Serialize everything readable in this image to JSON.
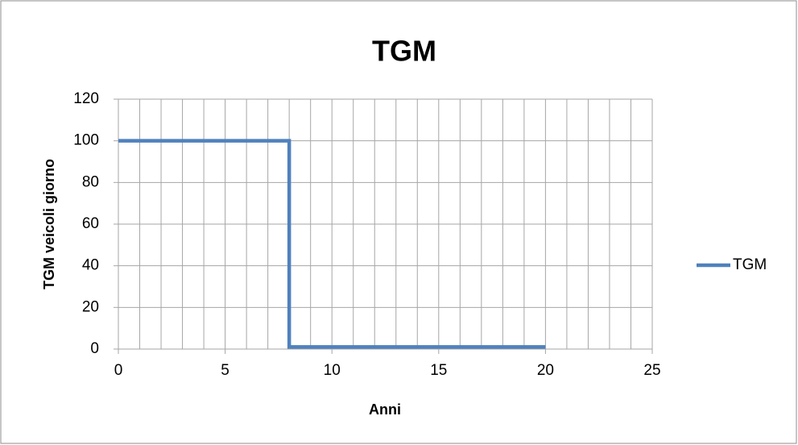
{
  "chart_data": {
    "type": "line",
    "title": "TGM",
    "xlabel": "Anni",
    "ylabel": "TGM veicoli giorno",
    "x": [
      0,
      8,
      8,
      20
    ],
    "series": [
      {
        "name": "TGM",
        "color": "#4f81bd",
        "values": [
          100,
          100,
          1,
          1
        ]
      }
    ],
    "xlim": [
      0,
      25
    ],
    "xticks": [
      0,
      5,
      10,
      15,
      20,
      25
    ],
    "x_minor_grid": 1,
    "ylim": [
      0,
      120
    ],
    "yticks": [
      0,
      20,
      40,
      60,
      80,
      100,
      120
    ],
    "grid": true,
    "legend": "right"
  }
}
